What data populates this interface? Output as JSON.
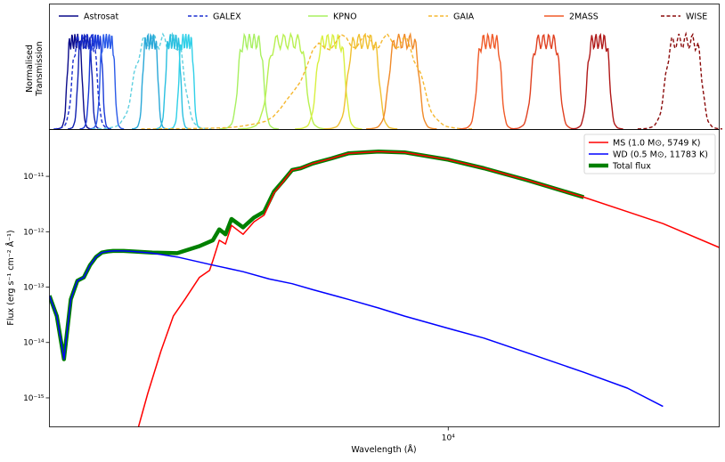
{
  "chart_data": [
    {
      "type": "line",
      "ylabel": "Normalised\nTransmission",
      "legend": {
        "placement": "top",
        "entries": [
          {
            "label": "Astrosat",
            "color": "#0a0a8a",
            "dash": "solid"
          },
          {
            "label": "GALEX",
            "color": "#1a2ed0",
            "dash": "dashed"
          },
          {
            "label": "KPNO",
            "color": "#a8f060",
            "dash": "solid"
          },
          {
            "label": "GAIA",
            "color": "#f5b830",
            "dash": "dashed"
          },
          {
            "label": "2MASS",
            "color": "#f05a28",
            "dash": "solid"
          },
          {
            "label": "WISE",
            "color": "#8a0a0a",
            "dash": "dashed"
          }
        ]
      },
      "filters": [
        {
          "family": "Astrosat",
          "center": 1480,
          "width": 120,
          "color": "#0a0a8a",
          "dash": "solid"
        },
        {
          "family": "Astrosat",
          "center": 1560,
          "width": 120,
          "color": "#1020b0",
          "dash": "solid"
        },
        {
          "family": "Astrosat",
          "center": 1650,
          "width": 120,
          "color": "#1a3ad8",
          "dash": "solid"
        },
        {
          "family": "Astrosat",
          "center": 1750,
          "width": 140,
          "color": "#2a5ae8",
          "dash": "solid"
        },
        {
          "family": "GALEX",
          "center": 1560,
          "width": 210,
          "color": "#1a2ed0",
          "dash": "dashed"
        },
        {
          "family": "GALEX",
          "center": 2300,
          "width": 620,
          "color": "#60d0e0",
          "dash": "dashed"
        },
        {
          "family": "Astrosat",
          "center": 2180,
          "width": 180,
          "color": "#2aa8d8",
          "dash": "solid"
        },
        {
          "family": "Astrosat",
          "center": 2450,
          "width": 200,
          "color": "#2ac0e0",
          "dash": "solid"
        },
        {
          "family": "Astrosat",
          "center": 2620,
          "width": 210,
          "color": "#30d0e8",
          "dash": "solid"
        },
        {
          "family": "KPNO",
          "center": 3650,
          "width": 500,
          "color": "#a8f060",
          "dash": "solid"
        },
        {
          "family": "KPNO",
          "center": 4400,
          "width": 900,
          "color": "#b8f050",
          "dash": "solid"
        },
        {
          "family": "KPNO",
          "center": 5500,
          "width": 850,
          "color": "#d8f040",
          "dash": "solid"
        },
        {
          "family": "KPNO",
          "center": 6500,
          "width": 1100,
          "color": "#f0c030",
          "dash": "solid"
        },
        {
          "family": "KPNO",
          "center": 8000,
          "width": 1300,
          "color": "#f08a28",
          "dash": "solid"
        },
        {
          "family": "GAIA",
          "center": 6700,
          "width": 4200,
          "color": "#f5b830",
          "dash": "dashed"
        },
        {
          "family": "2MASS",
          "center": 12350,
          "width": 1600,
          "color": "#f05a28",
          "dash": "solid"
        },
        {
          "family": "2MASS",
          "center": 16500,
          "width": 2500,
          "color": "#e04020",
          "dash": "solid"
        },
        {
          "family": "2MASS",
          "center": 21600,
          "width": 2600,
          "color": "#b01818",
          "dash": "solid"
        },
        {
          "family": "WISE",
          "center": 33500,
          "width": 6500,
          "color": "#8a0a0a",
          "dash": "dashed"
        }
      ]
    },
    {
      "type": "line",
      "xlabel": "Wavelength (Å)",
      "ylabel": "Flux (erg s⁻¹ cm⁻² Å⁻¹)",
      "xscale": "log",
      "yscale": "log",
      "xlim": [
        1300,
        40000
      ],
      "ylim": [
        3e-16,
        7e-11
      ],
      "x_ticks": [
        {
          "value": 10000,
          "label": "10⁴"
        }
      ],
      "y_ticks": [
        {
          "value": 1e-15,
          "label": "10⁻¹⁵"
        },
        {
          "value": 1e-14,
          "label": "10⁻¹⁴"
        },
        {
          "value": 1e-13,
          "label": "10⁻¹³"
        },
        {
          "value": 1e-12,
          "label": "10⁻¹²"
        },
        {
          "value": 1e-11,
          "label": "10⁻¹¹"
        }
      ],
      "grid": false,
      "legend": {
        "placement": "top-right",
        "entries": [
          {
            "label": "MS (1.0 M⊙, 5749 K)",
            "color": "#ff0000",
            "width": 1.5
          },
          {
            "label": "WD (0.5 M⊙, 11783 K)",
            "color": "#0000ff",
            "width": 1.5
          },
          {
            "label": "Total flux",
            "color": "#008000",
            "width": 4.5
          }
        ]
      },
      "series": [
        {
          "name": "MS (1.0 M⊙, 5749 K)",
          "color": "#ff0000",
          "x": [
            2050,
            2150,
            2300,
            2450,
            2600,
            2800,
            2950,
            3000,
            3100,
            3200,
            3300,
            3500,
            3700,
            3900,
            4100,
            4300,
            4500,
            4700,
            5000,
            5500,
            6000,
            7000,
            8000,
            10000,
            12000,
            15000,
            20000,
            25000,
            30000,
            40000
          ],
          "y": [
            3e-16,
            1.2e-15,
            7e-15,
            3e-14,
            6e-14,
            1.5e-13,
            2e-13,
            3e-13,
            7e-13,
            6e-13,
            1.3e-12,
            9e-13,
            1.5e-12,
            2e-12,
            5e-12,
            8e-12,
            1.3e-11,
            1.4e-11,
            1.7e-11,
            2.1e-11,
            2.6e-11,
            2.8e-11,
            2.7e-11,
            2e-11,
            1.4e-11,
            8.5e-12,
            4.2e-12,
            2.3e-12,
            1.4e-12,
            5.2e-13
          ]
        },
        {
          "name": "WD (0.5 M⊙, 11783 K)",
          "color": "#0000ff",
          "x": [
            1300,
            1350,
            1400,
            1450,
            1500,
            1550,
            1600,
            1650,
            1700,
            1750,
            1800,
            1900,
            2000,
            2200,
            2500,
            3000,
            3500,
            4000,
            4500,
            5000,
            6000,
            7000,
            8000,
            10000,
            12000,
            15000,
            20000,
            25000,
            30000
          ],
          "y": [
            7e-14,
            3e-14,
            5e-15,
            6e-14,
            1.3e-13,
            1.5e-13,
            2.5e-13,
            3.5e-13,
            4.2e-13,
            4.4e-13,
            4.5e-13,
            4.5e-13,
            4.4e-13,
            4.1e-13,
            3.5e-13,
            2.5e-13,
            1.9e-13,
            1.4e-13,
            1.15e-13,
            9e-14,
            6e-14,
            4.2e-14,
            3e-14,
            1.8e-14,
            1.2e-14,
            6.5e-15,
            2.9e-15,
            1.5e-15,
            7e-16
          ]
        },
        {
          "name": "Total flux",
          "color": "#008000",
          "x": [
            1300,
            1350,
            1400,
            1450,
            1500,
            1550,
            1600,
            1650,
            1700,
            1750,
            1800,
            1900,
            2000,
            2200,
            2500,
            2800,
            3000,
            3100,
            3200,
            3300,
            3500,
            3700,
            3900,
            4100,
            4300,
            4500,
            4700,
            5000,
            5500,
            6000,
            7000,
            8000,
            10000,
            12000,
            15000,
            20000
          ],
          "y": [
            7e-14,
            3e-14,
            5e-15,
            6e-14,
            1.3e-13,
            1.5e-13,
            2.5e-13,
            3.5e-13,
            4.2e-13,
            4.4e-13,
            4.5e-13,
            4.5e-13,
            4.4e-13,
            4.2e-13,
            4.1e-13,
            5.5e-13,
            7e-13,
            1.1e-12,
            9e-13,
            1.7e-12,
            1.2e-12,
            1.8e-12,
            2.3e-12,
            5.3e-12,
            8.3e-12,
            1.3e-11,
            1.4e-11,
            1.7e-11,
            2.1e-11,
            2.6e-11,
            2.8e-11,
            2.7e-11,
            2e-11,
            1.4e-11,
            8.5e-12,
            4.2e-12
          ]
        }
      ]
    }
  ]
}
